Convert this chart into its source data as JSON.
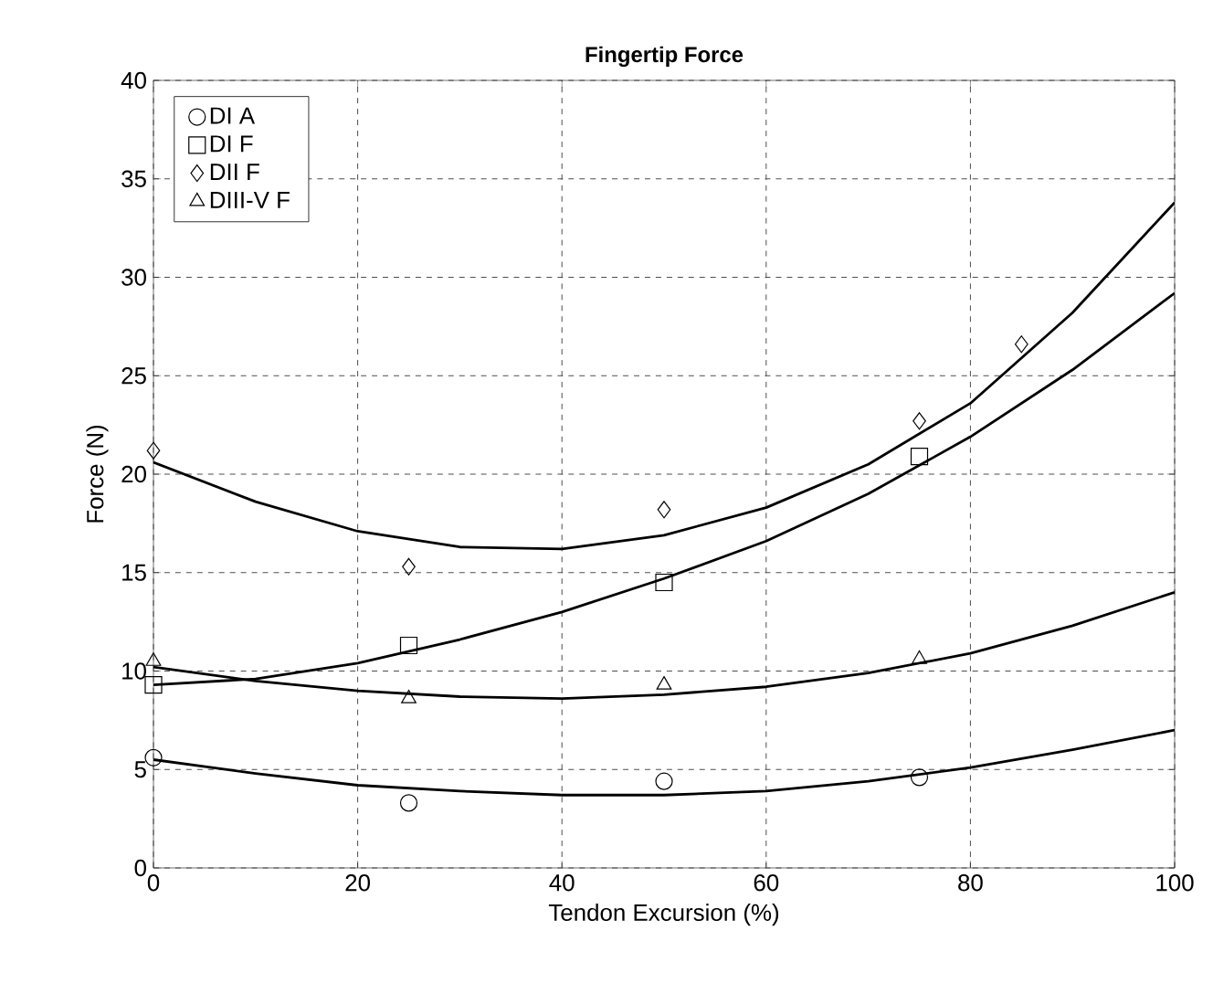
{
  "chart_data": {
    "type": "scatter",
    "title": "Fingertip Force",
    "xlabel": "Tendon Excursion (%)",
    "ylabel": "Force (N)",
    "xlim": [
      0,
      100
    ],
    "ylim": [
      0,
      40
    ],
    "xticks": [
      0,
      20,
      40,
      60,
      80,
      100
    ],
    "yticks": [
      0,
      5,
      10,
      15,
      20,
      25,
      30,
      35,
      40
    ],
    "grid": true,
    "legend": "top left",
    "series": [
      {
        "name": "DI A",
        "marker": "circle",
        "color": "#000000",
        "x": [
          0,
          25,
          50,
          75
        ],
        "values": [
          5.6,
          3.3,
          4.4,
          4.6
        ]
      },
      {
        "name": "DI F",
        "marker": "square",
        "color": "#000000",
        "x": [
          0,
          25,
          50,
          75
        ],
        "values": [
          9.3,
          11.3,
          14.5,
          20.9
        ]
      },
      {
        "name": "DII F",
        "marker": "diamond",
        "color": "#000000",
        "x": [
          0,
          25,
          50,
          75,
          85
        ],
        "values": [
          21.2,
          15.3,
          18.2,
          22.7,
          26.6
        ]
      },
      {
        "name": "DIII-V F",
        "marker": "triangle",
        "color": "#000000",
        "x": [
          0,
          25,
          50,
          75
        ],
        "values": [
          10.5,
          8.6,
          9.3,
          10.6
        ]
      },
      {
        "type": "line",
        "marker": "none",
        "line_style": "solid",
        "color": "#000000",
        "x": [
          0,
          10,
          20,
          30,
          40,
          50,
          60,
          70,
          80,
          90,
          100
        ],
        "values": [
          5.5,
          4.8,
          4.2,
          3.9,
          3.7,
          3.7,
          3.9,
          4.4,
          5.1,
          6.0,
          7.0
        ]
      },
      {
        "type": "line",
        "marker": "none",
        "line_style": "solid",
        "color": "#000000",
        "x": [
          0,
          10,
          20,
          30,
          40,
          50,
          60,
          70,
          80,
          90,
          100
        ],
        "values": [
          9.3,
          9.6,
          10.4,
          11.6,
          13.0,
          14.7,
          16.6,
          19.0,
          21.9,
          25.3,
          29.2
        ]
      },
      {
        "type": "line",
        "marker": "none",
        "line_style": "solid",
        "color": "#000000",
        "x": [
          0,
          10,
          20,
          30,
          40,
          50,
          60,
          70,
          80,
          90,
          100
        ],
        "values": [
          20.6,
          18.6,
          17.1,
          16.3,
          16.2,
          16.9,
          18.3,
          20.5,
          23.6,
          28.2,
          33.8
        ]
      },
      {
        "type": "line",
        "marker": "none",
        "line_style": "solid",
        "color": "#000000",
        "x": [
          0,
          10,
          20,
          30,
          40,
          50,
          60,
          70,
          80,
          90,
          100
        ],
        "values": [
          10.2,
          9.5,
          9.0,
          8.7,
          8.6,
          8.8,
          9.2,
          9.9,
          10.9,
          12.3,
          14.0
        ]
      }
    ]
  }
}
